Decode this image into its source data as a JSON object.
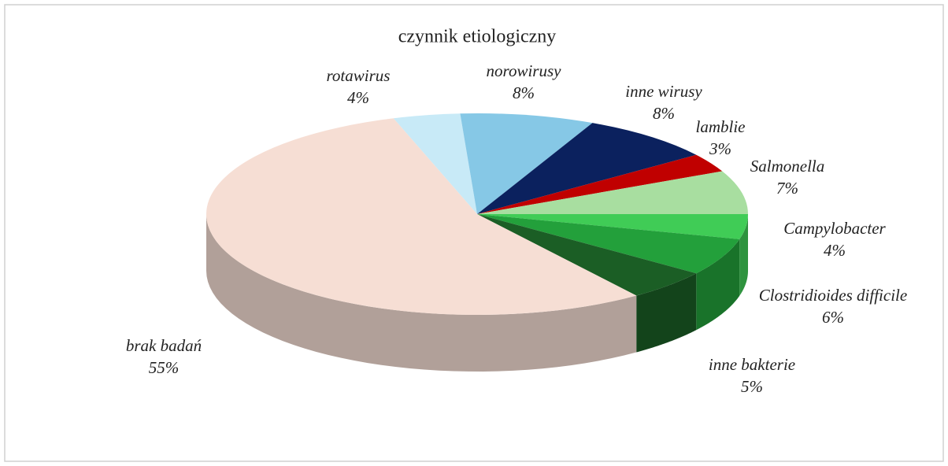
{
  "chart_data": {
    "type": "pie",
    "title": "czynnik etiologiczny",
    "categories": [
      "rotawirus",
      "norowirusy",
      "inne wirusy",
      "lamblie",
      "Salmonella",
      "Campylobacter",
      "Clostridioides difficile",
      "inne bakterie",
      "brak badań"
    ],
    "values": [
      4,
      8,
      8,
      3,
      7,
      4,
      6,
      5,
      55
    ],
    "value_labels": [
      "4%",
      "8%",
      "8%",
      "3%",
      "7%",
      "4%",
      "6%",
      "5%",
      "55%"
    ],
    "colors": [
      "#c8eaf7",
      "#86c8e6",
      "#0b215e",
      "#c00000",
      "#a8dea0",
      "#40cc56",
      "#23a03b",
      "#1b5e25",
      "#f6ded4"
    ]
  }
}
